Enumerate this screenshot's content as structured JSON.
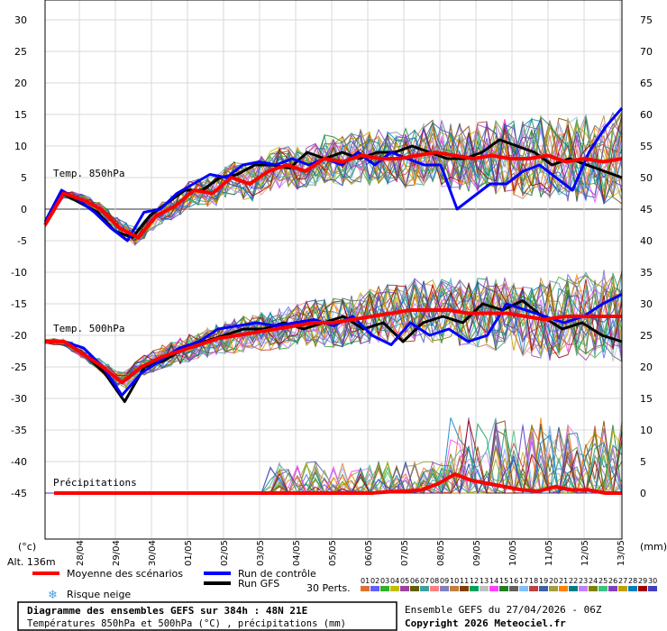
{
  "chart_data": {
    "type": "line",
    "left_axis_ticks": [
      30,
      25,
      20,
      15,
      10,
      5,
      0,
      -5,
      -10,
      -15,
      -20,
      -25,
      -30,
      -35,
      -40,
      -45
    ],
    "right_axis_ticks": [
      75,
      70,
      65,
      60,
      55,
      50,
      45,
      40,
      35,
      30,
      25,
      20,
      15,
      10,
      5,
      0
    ],
    "left_axis_unit": "(°c)",
    "right_axis_unit": "(mm)",
    "altitude": "Alt. 136m",
    "x_ticks": [
      "28/04",
      "29/04",
      "30/04",
      "01/05",
      "02/05",
      "03/05",
      "04/05",
      "05/05",
      "06/05",
      "07/05",
      "08/05",
      "09/05",
      "10/05",
      "11/05",
      "12/05",
      "13/05"
    ],
    "section_labels": {
      "t850": "Temp. 850hPa",
      "t500": "Temp. 500hPa",
      "precip": "Précipitations"
    },
    "series": [
      {
        "name": "Moyenne des scénarios",
        "color": "#ff0000",
        "t850": [
          -2.5,
          2.5,
          1.5,
          0,
          -3,
          -4.5,
          -1,
          0.5,
          3,
          2.5,
          5,
          4,
          6,
          7,
          6,
          8,
          7.5,
          8.5,
          8,
          8,
          8.5,
          9,
          8.5,
          8,
          8.5,
          8,
          8,
          8.5,
          7.5,
          8,
          7.5,
          8
        ],
        "t500": [
          -21,
          -21,
          -23,
          -25,
          -27.5,
          -25,
          -23.5,
          -22.5,
          -21.5,
          -20.5,
          -20,
          -19.5,
          -19,
          -18.5,
          -18,
          -18,
          -17.5,
          -17,
          -16.5,
          -16,
          -16,
          -16,
          -16.5,
          -16.5,
          -16.5,
          -17,
          -17.5,
          -17,
          -17,
          -17,
          -17
        ],
        "precip": [
          0,
          0,
          0,
          0,
          0,
          0,
          0,
          0,
          0,
          0,
          0,
          0,
          0,
          0,
          0,
          0,
          0,
          0,
          0,
          0,
          0.2,
          0.3,
          0.5,
          1.5,
          3,
          2,
          1.5,
          1,
          0.5,
          0.3,
          1,
          0.5,
          0.5,
          0,
          0
        ]
      },
      {
        "name": "Run de contrôle",
        "color": "#0000ff",
        "t850": [
          -2,
          3,
          1.5,
          -0.5,
          -3,
          -5,
          -0.5,
          0,
          2.5,
          4,
          5.5,
          5,
          7,
          7.5,
          7,
          8,
          7,
          8,
          7,
          9,
          7,
          9,
          8,
          7,
          7,
          0,
          2,
          4,
          4,
          6,
          7,
          5,
          3,
          9,
          13,
          16
        ],
        "t500": [
          -21,
          -21,
          -22,
          -25,
          -29.5,
          -26,
          -24,
          -22,
          -21,
          -19,
          -18.5,
          -18,
          -18.5,
          -18,
          -17.5,
          -18.5,
          -17,
          -20,
          -21.5,
          -18,
          -20,
          -19,
          -21,
          -20,
          -15,
          -16,
          -17,
          -18,
          -17,
          -15,
          -13.5
        ]
      },
      {
        "name": "Run GFS",
        "color": "#000000",
        "t850": [
          -2,
          2.5,
          1,
          -0.5,
          -3.5,
          -4.5,
          -1,
          1,
          3,
          3,
          5,
          5.5,
          7,
          7,
          6.5,
          9,
          8,
          9,
          8,
          9,
          9,
          10,
          9,
          8,
          8,
          9,
          11,
          10,
          9,
          7,
          8,
          7,
          6,
          5
        ],
        "t500": [
          -21,
          -21,
          -23,
          -26,
          -30.5,
          -25,
          -24,
          -22,
          -21,
          -20,
          -19,
          -19,
          -18,
          -19,
          -18,
          -17,
          -19,
          -18,
          -21,
          -18,
          -17,
          -18,
          -15,
          -16,
          -14.5,
          -17,
          -19,
          -18,
          -20,
          -21
        ]
      }
    ],
    "legend": {
      "mean": "Moyenne des scénarios",
      "control": "Run de contrôle",
      "gfs": "Run GFS",
      "snow": "Risque neige",
      "perts": "30 Perts.",
      "pert_numbers": [
        "01",
        "02",
        "03",
        "04",
        "05",
        "06",
        "07",
        "08",
        "09",
        "10",
        "11",
        "12",
        "13",
        "14",
        "15",
        "16",
        "17",
        "18",
        "19",
        "20",
        "21",
        "22",
        "23",
        "24",
        "25",
        "26",
        "27",
        "28",
        "29",
        "30"
      ],
      "pert_colors": [
        "#e07030",
        "#6060ff",
        "#30b030",
        "#c0c000",
        "#a040a0",
        "#606000",
        "#40a0a0",
        "#ff8080",
        "#8080c0",
        "#c08040",
        "#804000",
        "#00a060",
        "#c0c0c0",
        "#ff40ff",
        "#208020",
        "#606060",
        "#80c0ff",
        "#c04040",
        "#4060a0",
        "#a0a040",
        "#ff8000",
        "#008080",
        "#c080ff",
        "#808000",
        "#40c080",
        "#8040c0",
        "#c0a000",
        "#0080c0",
        "#a00000",
        "#4040c0"
      ]
    },
    "footer": {
      "title": "Diagramme des ensembles GEFS sur 384h : 48N 21E",
      "subtitle": "Températures 850hPa et 500hPa (°C) , précipitations (mm)",
      "run": "Ensemble GEFS du 27/04/2026 - 06Z",
      "copyright": "Copyright 2026 Meteociel.fr"
    }
  }
}
